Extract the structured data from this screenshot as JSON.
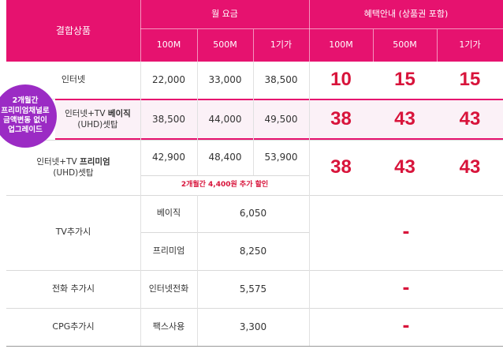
{
  "header": {
    "product": "결합상품",
    "monthly_fee": "월 요금",
    "benefit": "혜택안내 (상품권 포함)",
    "speeds": [
      "100M",
      "500M",
      "1기가"
    ]
  },
  "rows": {
    "internet": {
      "label": "인터넷",
      "fees": [
        "22,000",
        "33,000",
        "38,500"
      ],
      "benefits": [
        "10",
        "15",
        "15"
      ]
    },
    "basic": {
      "label_pre": "인터넷+TV ",
      "label_bold": "베이직",
      "label_sub": "(UHD)셋탑",
      "fees": [
        "38,500",
        "44,000",
        "49,500"
      ],
      "benefits": [
        "38",
        "43",
        "43"
      ]
    },
    "premium": {
      "label_pre": "인터넷+TV ",
      "label_bold": "프리미엄",
      "label_sub": "(UHD)셋탑",
      "fees": [
        "42,900",
        "48,400",
        "53,900"
      ],
      "benefits": [
        "38",
        "43",
        "43"
      ],
      "note": "2개월간 4,400원 추가 할인"
    }
  },
  "badge": {
    "lines": [
      "2개월간",
      "프리미엄채널로",
      "금액변동 없이",
      "업그레이드"
    ]
  },
  "addons": {
    "tv": {
      "label": "TV추가시",
      "items": [
        {
          "name": "베이직",
          "fee": "6,050"
        },
        {
          "name": "프리미엄",
          "fee": "8,250"
        }
      ],
      "benefit": "-"
    },
    "phone": {
      "label": "전화 추가시",
      "item": "인터넷전화",
      "fee": "5,575",
      "benefit": "-"
    },
    "cpg": {
      "label": "CPG추가시",
      "item": "팩스사용",
      "fee": "3,300",
      "benefit": "-"
    }
  },
  "colors": {
    "header": "#e6126f",
    "highlight": "#d8143b",
    "badge": "#9b2bc4"
  }
}
